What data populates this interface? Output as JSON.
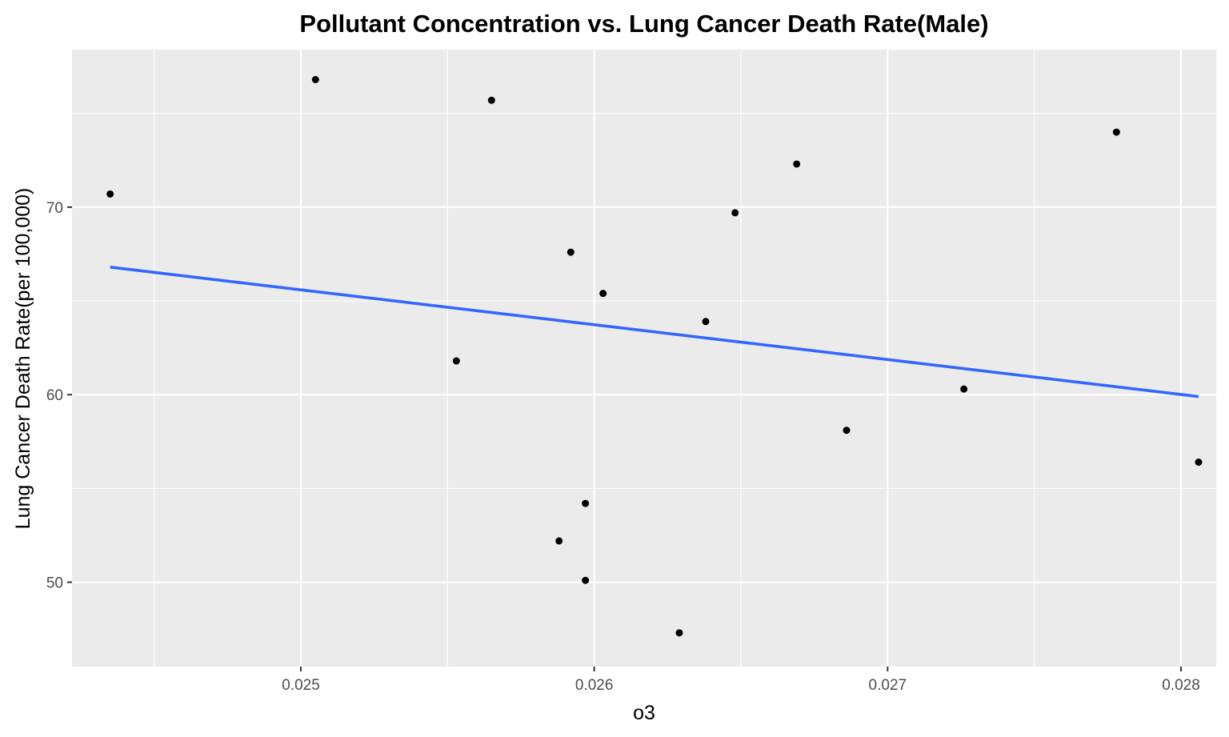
{
  "chart_data": {
    "type": "scatter",
    "title": "Pollutant Concentration vs. Lung Cancer Death Rate(Male)",
    "xlabel": "o3",
    "ylabel": "Lung Cancer Death Rate(per 100,000)",
    "xlim": [
      0.02422,
      0.02812
    ],
    "ylim": [
      45.5,
      78.4
    ],
    "x_ticks": [
      0.025,
      0.026,
      0.027,
      0.028
    ],
    "x_tick_labels": [
      "0.025",
      "0.026",
      "0.027",
      "0.028"
    ],
    "y_ticks": [
      50,
      60,
      70
    ],
    "y_tick_labels": [
      "50",
      "60",
      "70"
    ],
    "grid": true,
    "points": [
      {
        "x": 0.02435,
        "y": 70.7
      },
      {
        "x": 0.02505,
        "y": 76.8
      },
      {
        "x": 0.02553,
        "y": 61.8
      },
      {
        "x": 0.02565,
        "y": 75.7
      },
      {
        "x": 0.02588,
        "y": 52.2
      },
      {
        "x": 0.02592,
        "y": 67.6
      },
      {
        "x": 0.02597,
        "y": 54.2
      },
      {
        "x": 0.02597,
        "y": 50.1
      },
      {
        "x": 0.02603,
        "y": 65.4
      },
      {
        "x": 0.02629,
        "y": 47.3
      },
      {
        "x": 0.02638,
        "y": 63.9
      },
      {
        "x": 0.02648,
        "y": 69.7
      },
      {
        "x": 0.02669,
        "y": 72.3
      },
      {
        "x": 0.02686,
        "y": 58.1
      },
      {
        "x": 0.02726,
        "y": 60.3
      },
      {
        "x": 0.02778,
        "y": 74.0
      },
      {
        "x": 0.02806,
        "y": 56.4
      }
    ],
    "trend_line": {
      "x": [
        0.02435,
        0.02806
      ],
      "y": [
        66.8,
        59.9
      ]
    },
    "colors": {
      "panel_background": "#ebebeb",
      "grid": "#ffffff",
      "points": "#000000",
      "trend_line": "#3366ff"
    }
  }
}
